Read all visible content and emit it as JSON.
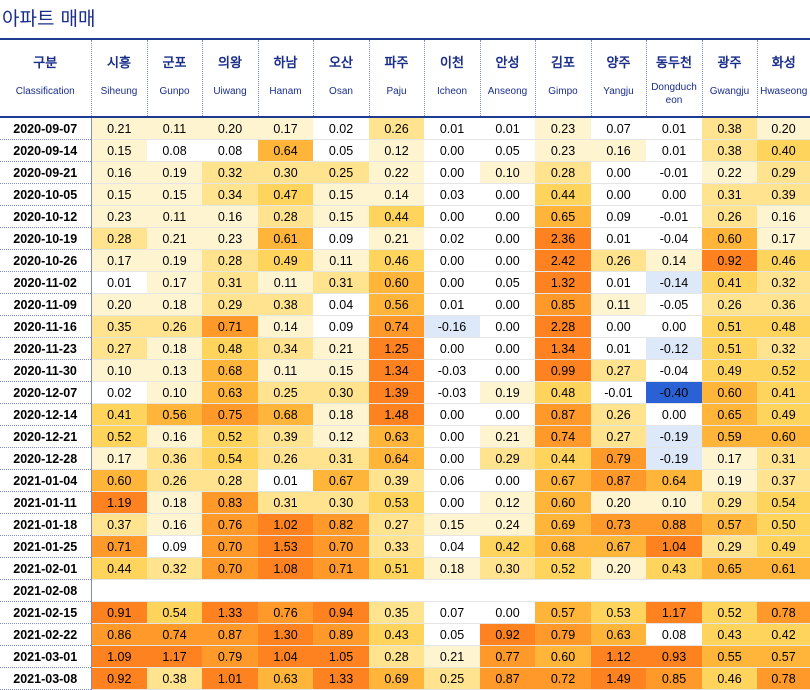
{
  "title": "아파트 매매",
  "header": {
    "label_ko": "구분",
    "label_en": "Classification",
    "regions": [
      {
        "ko": "시흥",
        "en": "Siheung"
      },
      {
        "ko": "군포",
        "en": "Gunpo"
      },
      {
        "ko": "의왕",
        "en": "Uiwang"
      },
      {
        "ko": "하남",
        "en": "Hanam"
      },
      {
        "ko": "오산",
        "en": "Osan"
      },
      {
        "ko": "파주",
        "en": "Paju"
      },
      {
        "ko": "이천",
        "en": "Icheon"
      },
      {
        "ko": "안성",
        "en": "Anseong"
      },
      {
        "ko": "김포",
        "en": "Gimpo"
      },
      {
        "ko": "양주",
        "en": "Yangju"
      },
      {
        "ko": "동두천",
        "en": "Dongducheon"
      },
      {
        "ko": "광주",
        "en": "Gwangju"
      },
      {
        "ko": "화성",
        "en": "Hwaseong"
      }
    ]
  },
  "colors": {
    "header_text": "#1a2e8a",
    "border": "#1f3b8f",
    "negative_strong": "#2a62d6",
    "negative_light": "#dde8f8",
    "zero": "#ffffff",
    "low": "#fff0c0",
    "mid": "#ffcf55",
    "high": "#ff9a2a",
    "very_high": "#ff7a1a"
  },
  "rows": [
    {
      "date": "2020-09-07",
      "values": [
        "0.21",
        "0.11",
        "0.20",
        "0.17",
        "0.02",
        "0.26",
        "0.01",
        "0.01",
        "0.23",
        "0.07",
        "0.01",
        "0.38",
        "0.20"
      ]
    },
    {
      "date": "2020-09-14",
      "values": [
        "0.15",
        "0.08",
        "0.08",
        "0.64",
        "0.05",
        "0.12",
        "0.00",
        "0.05",
        "0.23",
        "0.16",
        "0.01",
        "0.38",
        "0.40"
      ]
    },
    {
      "date": "2020-09-21",
      "values": [
        "0.16",
        "0.19",
        "0.32",
        "0.30",
        "0.25",
        "0.22",
        "0.00",
        "0.10",
        "0.28",
        "0.00",
        "-0.01",
        "0.22",
        "0.29"
      ]
    },
    {
      "date": "2020-10-05",
      "values": [
        "0.15",
        "0.15",
        "0.34",
        "0.47",
        "0.15",
        "0.14",
        "0.03",
        "0.00",
        "0.44",
        "0.00",
        "0.00",
        "0.31",
        "0.39"
      ]
    },
    {
      "date": "2020-10-12",
      "values": [
        "0.23",
        "0.11",
        "0.16",
        "0.28",
        "0.15",
        "0.44",
        "0.00",
        "0.00",
        "0.65",
        "0.09",
        "-0.01",
        "0.26",
        "0.16"
      ]
    },
    {
      "date": "2020-10-19",
      "values": [
        "0.28",
        "0.21",
        "0.23",
        "0.61",
        "0.09",
        "0.21",
        "0.02",
        "0.00",
        "2.36",
        "0.01",
        "-0.04",
        "0.60",
        "0.17"
      ]
    },
    {
      "date": "2020-10-26",
      "values": [
        "0.17",
        "0.19",
        "0.28",
        "0.49",
        "0.11",
        "0.46",
        "0.00",
        "0.00",
        "2.42",
        "0.26",
        "0.14",
        "0.92",
        "0.46"
      ]
    },
    {
      "date": "2020-11-02",
      "values": [
        "0.01",
        "0.17",
        "0.31",
        "0.11",
        "0.31",
        "0.60",
        "0.00",
        "0.05",
        "1.32",
        "0.01",
        "-0.14",
        "0.41",
        "0.32"
      ]
    },
    {
      "date": "2020-11-09",
      "values": [
        "0.20",
        "0.18",
        "0.29",
        "0.38",
        "0.04",
        "0.56",
        "0.01",
        "0.00",
        "0.85",
        "0.11",
        "-0.05",
        "0.26",
        "0.36"
      ]
    },
    {
      "date": "2020-11-16",
      "values": [
        "0.35",
        "0.26",
        "0.71",
        "0.14",
        "0.09",
        "0.74",
        "-0.16",
        "0.00",
        "2.28",
        "0.00",
        "0.00",
        "0.51",
        "0.48"
      ]
    },
    {
      "date": "2020-11-23",
      "values": [
        "0.27",
        "0.18",
        "0.48",
        "0.34",
        "0.21",
        "1.25",
        "0.00",
        "0.00",
        "1.34",
        "0.01",
        "-0.12",
        "0.51",
        "0.32"
      ]
    },
    {
      "date": "2020-11-30",
      "values": [
        "0.10",
        "0.13",
        "0.68",
        "0.11",
        "0.15",
        "1.34",
        "-0.03",
        "0.00",
        "0.99",
        "0.27",
        "-0.04",
        "0.49",
        "0.52"
      ]
    },
    {
      "date": "2020-12-07",
      "values": [
        "0.02",
        "0.10",
        "0.63",
        "0.25",
        "0.30",
        "1.39",
        "-0.03",
        "0.19",
        "0.48",
        "-0.01",
        "-0.40",
        "0.60",
        "0.41"
      ]
    },
    {
      "date": "2020-12-14",
      "values": [
        "0.41",
        "0.56",
        "0.75",
        "0.68",
        "0.18",
        "1.48",
        "0.00",
        "0.00",
        "0.87",
        "0.26",
        "0.00",
        "0.65",
        "0.49"
      ]
    },
    {
      "date": "2020-12-21",
      "values": [
        "0.52",
        "0.16",
        "0.52",
        "0.39",
        "0.12",
        "0.63",
        "0.00",
        "0.21",
        "0.74",
        "0.27",
        "-0.19",
        "0.59",
        "0.60"
      ]
    },
    {
      "date": "2020-12-28",
      "values": [
        "0.17",
        "0.36",
        "0.54",
        "0.26",
        "0.31",
        "0.64",
        "0.00",
        "0.29",
        "0.44",
        "0.79",
        "-0.19",
        "0.17",
        "0.31"
      ]
    },
    {
      "date": "2021-01-04",
      "values": [
        "0.60",
        "0.26",
        "0.28",
        "0.01",
        "0.67",
        "0.39",
        "0.06",
        "0.00",
        "0.67",
        "0.87",
        "0.64",
        "0.19",
        "0.37"
      ]
    },
    {
      "date": "2021-01-11",
      "values": [
        "1.19",
        "0.18",
        "0.83",
        "0.31",
        "0.30",
        "0.53",
        "0.00",
        "0.12",
        "0.60",
        "0.20",
        "0.10",
        "0.29",
        "0.54"
      ]
    },
    {
      "date": "2021-01-18",
      "values": [
        "0.37",
        "0.16",
        "0.76",
        "1.02",
        "0.82",
        "0.27",
        "0.15",
        "0.24",
        "0.69",
        "0.73",
        "0.88",
        "0.57",
        "0.50"
      ]
    },
    {
      "date": "2021-01-25",
      "values": [
        "0.71",
        "0.09",
        "0.70",
        "1.53",
        "0.70",
        "0.33",
        "0.04",
        "0.42",
        "0.68",
        "0.67",
        "1.04",
        "0.29",
        "0.49"
      ]
    },
    {
      "date": "2021-02-01",
      "values": [
        "0.44",
        "0.32",
        "0.70",
        "1.08",
        "0.71",
        "0.51",
        "0.18",
        "0.30",
        "0.52",
        "0.20",
        "0.43",
        "0.65",
        "0.61"
      ]
    },
    {
      "date": "2021-02-08",
      "values": [
        "",
        "",
        "",
        "",
        "",
        "",
        "",
        "",
        "",
        "",
        "",
        "",
        ""
      ]
    },
    {
      "date": "2021-02-15",
      "values": [
        "0.91",
        "0.54",
        "1.33",
        "0.76",
        "0.94",
        "0.35",
        "0.07",
        "0.00",
        "0.57",
        "0.53",
        "1.17",
        "0.52",
        "0.78"
      ]
    },
    {
      "date": "2021-02-22",
      "values": [
        "0.86",
        "0.74",
        "0.87",
        "1.30",
        "0.89",
        "0.43",
        "0.05",
        "0.92",
        "0.79",
        "0.63",
        "0.08",
        "0.43",
        "0.42"
      ]
    },
    {
      "date": "2021-03-01",
      "values": [
        "1.09",
        "1.17",
        "0.79",
        "1.04",
        "1.05",
        "0.28",
        "0.21",
        "0.77",
        "0.60",
        "1.12",
        "0.93",
        "0.55",
        "0.57"
      ]
    },
    {
      "date": "2021-03-08",
      "values": [
        "0.92",
        "0.38",
        "1.01",
        "0.63",
        "1.33",
        "0.69",
        "0.25",
        "0.87",
        "0.72",
        "1.49",
        "0.85",
        "0.46",
        "0.78"
      ]
    }
  ]
}
